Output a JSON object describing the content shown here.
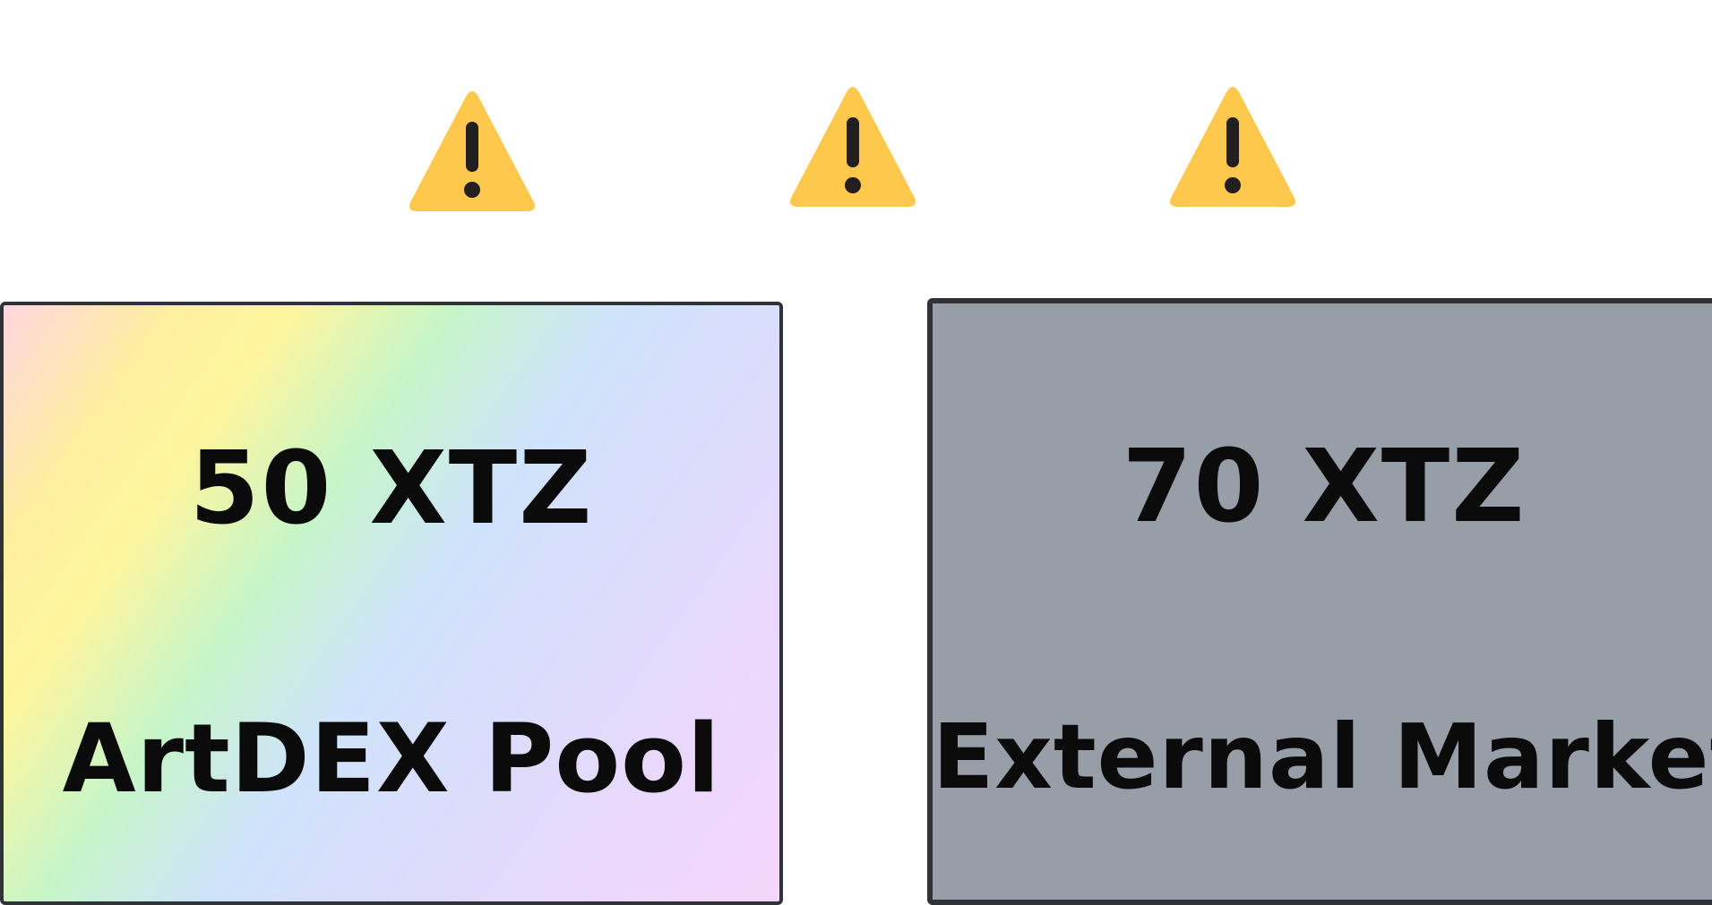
{
  "warnings": [
    {
      "icon": "warning-icon",
      "color": "#fec84d"
    },
    {
      "icon": "warning-icon",
      "color": "#fec84d"
    },
    {
      "icon": "warning-icon",
      "color": "#fec84d"
    }
  ],
  "pool_card": {
    "price": "50 XTZ",
    "name": "ArtDEX Pool"
  },
  "market_card": {
    "price": "70 XTZ",
    "name": "External Market",
    "color": "#979ea8"
  }
}
